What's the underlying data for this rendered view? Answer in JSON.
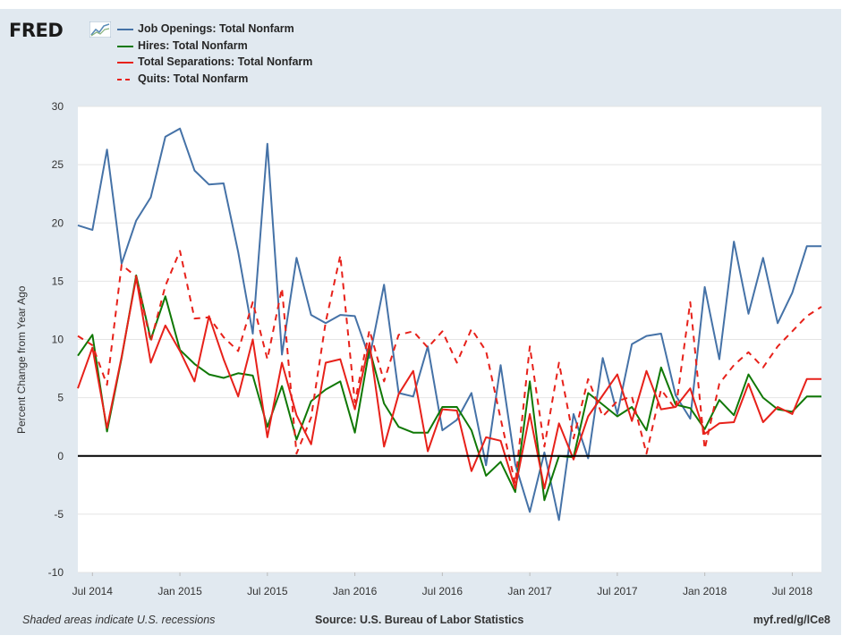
{
  "header": {
    "logo_text": "FRED",
    "logo_mark": "line-chart-icon"
  },
  "legend": [
    {
      "label": "Job Openings: Total Nonfarm",
      "color": "#4572a7",
      "dash": false
    },
    {
      "label": "Hires: Total Nonfarm",
      "color": "#107806",
      "dash": false
    },
    {
      "label": "Total Separations: Total Nonfarm",
      "color": "#e7211a",
      "dash": false
    },
    {
      "label": "Quits: Total Nonfarm",
      "color": "#e7211a",
      "dash": true
    }
  ],
  "footer": {
    "note": "Shaded areas indicate U.S. recessions",
    "source": "Source: U.S. Bureau of Labor Statistics",
    "link": "myf.red/g/lCe8"
  },
  "chart_data": {
    "type": "line",
    "title": "",
    "xlabel": "",
    "ylabel": "Percent Change from Year Ago",
    "ylim": [
      -10,
      30
    ],
    "yticks": [
      -10,
      -5,
      0,
      5,
      10,
      15,
      20,
      25,
      30
    ],
    "xticks": [
      "Jul 2014",
      "Jan 2015",
      "Jul 2015",
      "Jan 2016",
      "Jul 2016",
      "Jan 2017",
      "Jul 2017",
      "Jan 2018",
      "Jul 2018"
    ],
    "grid": true,
    "zero_line": true,
    "legend_position": "top-left",
    "x": [
      "2014-06",
      "2014-07",
      "2014-08",
      "2014-09",
      "2014-10",
      "2014-11",
      "2014-12",
      "2015-01",
      "2015-02",
      "2015-03",
      "2015-04",
      "2015-05",
      "2015-06",
      "2015-07",
      "2015-08",
      "2015-09",
      "2015-10",
      "2015-11",
      "2015-12",
      "2016-01",
      "2016-02",
      "2016-03",
      "2016-04",
      "2016-05",
      "2016-06",
      "2016-07",
      "2016-08",
      "2016-09",
      "2016-10",
      "2016-11",
      "2016-12",
      "2017-01",
      "2017-02",
      "2017-03",
      "2017-04",
      "2017-05",
      "2017-06",
      "2017-07",
      "2017-08",
      "2017-09",
      "2017-10",
      "2017-11",
      "2017-12",
      "2018-01",
      "2018-02",
      "2018-03",
      "2018-04",
      "2018-05",
      "2018-06",
      "2018-07",
      "2018-08",
      "2018-09"
    ],
    "series": [
      {
        "name": "Job Openings: Total Nonfarm",
        "color": "#4572a7",
        "dash": false,
        "values": [
          19.8,
          19.4,
          26.3,
          16.5,
          20.2,
          22.2,
          27.4,
          28.1,
          24.5,
          23.3,
          23.4,
          17.5,
          10.5,
          26.8,
          8.7,
          17.0,
          12.1,
          11.4,
          12.1,
          12.0,
          8.4,
          14.7,
          5.4,
          5.1,
          9.4,
          2.2,
          3.1,
          5.4,
          -0.8,
          7.8,
          -0.7,
          -4.8,
          0.3,
          -5.5,
          3.6,
          -0.2,
          8.4,
          3.6,
          9.6,
          10.3,
          10.5,
          5.2,
          3.2,
          14.5,
          8.3,
          18.4,
          12.2,
          17.0,
          11.4,
          14.0,
          18.0,
          18.0
        ]
      },
      {
        "name": "Hires: Total Nonfarm",
        "color": "#107806",
        "dash": false,
        "values": [
          8.6,
          10.4,
          2.1,
          8.4,
          15.5,
          10.0,
          13.7,
          9.1,
          7.9,
          7.0,
          6.7,
          7.1,
          6.9,
          2.5,
          6.0,
          1.4,
          4.7,
          5.7,
          6.4,
          2.0,
          9.2,
          4.5,
          2.5,
          2.0,
          2.0,
          4.2,
          4.2,
          2.2,
          -1.7,
          -0.5,
          -3.1,
          6.4,
          -3.8,
          0.0,
          -0.1,
          5.4,
          4.4,
          3.4,
          4.2,
          2.2,
          7.6,
          4.4,
          4.1,
          2.3,
          4.8,
          3.5,
          7.0,
          5.0,
          4.0,
          3.8,
          5.1,
          5.1
        ]
      },
      {
        "name": "Total Separations: Total Nonfarm",
        "color": "#e7211a",
        "dash": false,
        "values": [
          5.8,
          9.3,
          2.4,
          8.5,
          15.3,
          8.0,
          11.2,
          9.0,
          6.4,
          12.0,
          8.3,
          5.1,
          10.0,
          1.6,
          8.0,
          3.5,
          1.0,
          8.0,
          8.3,
          4.0,
          9.7,
          0.8,
          5.3,
          7.3,
          0.4,
          4.0,
          3.9,
          -1.3,
          1.6,
          1.3,
          -2.8,
          3.6,
          -2.8,
          2.8,
          -0.3,
          3.4,
          5.2,
          7.0,
          3.0,
          7.3,
          4.0,
          4.2,
          5.8,
          1.9,
          2.8,
          2.9,
          6.2,
          2.9,
          4.2,
          3.6,
          6.6,
          6.6
        ]
      },
      {
        "name": "Quits: Total Nonfarm",
        "color": "#e7211a",
        "dash": true,
        "values": [
          10.3,
          9.5,
          6.1,
          16.4,
          15.4,
          9.8,
          14.6,
          17.6,
          11.8,
          11.9,
          10.2,
          9.0,
          13.2,
          8.3,
          14.4,
          0.2,
          3.3,
          11.5,
          17.2,
          4.6,
          10.8,
          6.4,
          10.4,
          10.7,
          9.3,
          10.7,
          8.0,
          10.9,
          9.0,
          3.2,
          -2.4,
          9.4,
          0.8,
          8.0,
          1.5,
          6.6,
          3.4,
          4.7,
          5.1,
          0.2,
          5.7,
          4.0,
          13.2,
          0.6,
          6.2,
          7.8,
          8.9,
          7.6,
          9.4,
          10.7,
          12.0,
          12.8
        ]
      }
    ]
  }
}
